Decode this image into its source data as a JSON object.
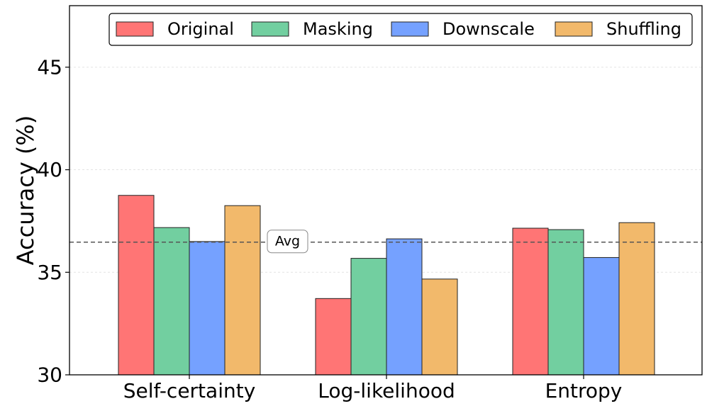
{
  "chart_data": {
    "type": "bar",
    "title": "",
    "xlabel": "",
    "ylabel": "Accuracy (%)",
    "ylim": [
      30,
      48
    ],
    "yticks": [
      30,
      35,
      40,
      45
    ],
    "grid": true,
    "legend_position": "top-right",
    "categories": [
      "Self-certainty",
      "Log-likelihood",
      "Entropy"
    ],
    "series": [
      {
        "name": "Original",
        "color": "#FF7575",
        "values": [
          38.75,
          33.72,
          37.15
        ]
      },
      {
        "name": "Masking",
        "color": "#72CFA0",
        "values": [
          37.18,
          35.68,
          37.08
        ]
      },
      {
        "name": "Downscale",
        "color": "#75A1FF",
        "values": [
          36.5,
          36.63,
          35.72
        ]
      },
      {
        "name": "Shuffling",
        "color": "#F2B96B",
        "values": [
          38.25,
          34.67,
          37.42
        ]
      }
    ],
    "reference_line": {
      "label": "Avg",
      "value": 36.47,
      "style": "dashed"
    }
  }
}
